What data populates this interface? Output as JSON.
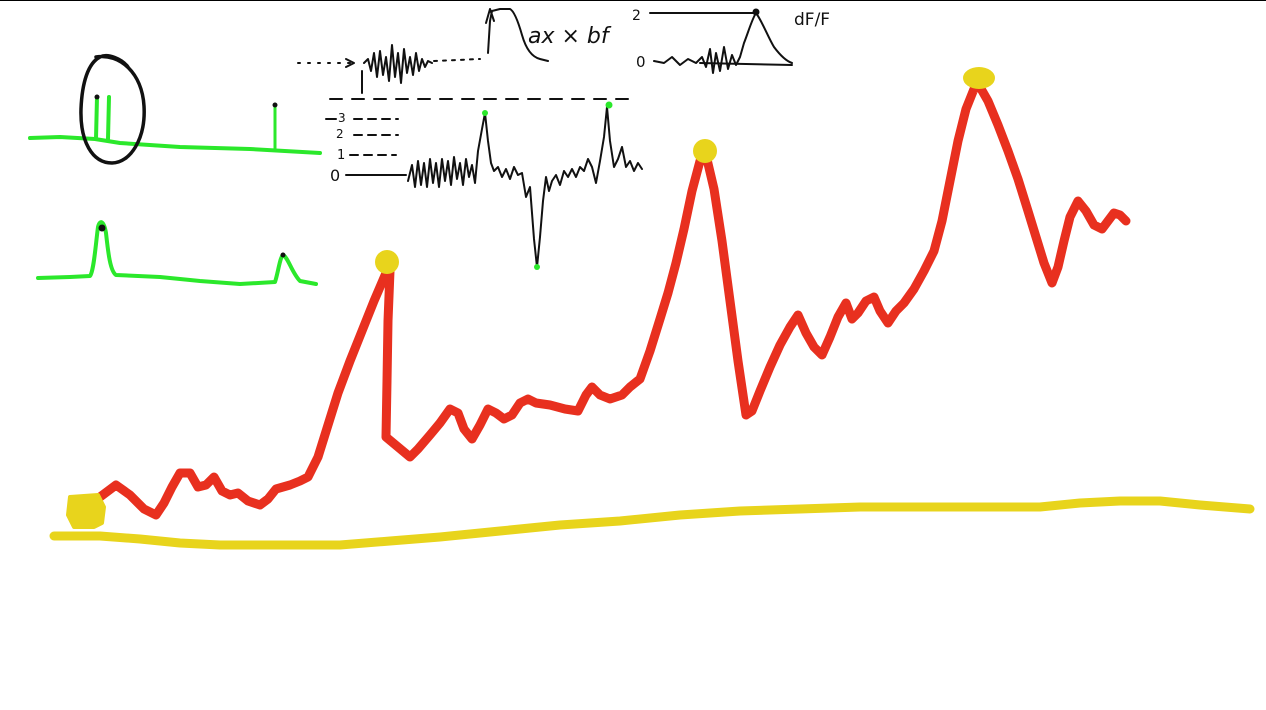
{
  "annotations": {
    "formula": "ax × bf",
    "ratio_label": "dF/F",
    "scale_top": "2",
    "scale_bottom": "0",
    "level_3": "3",
    "level_2": "2",
    "level_1": "1",
    "level_0": "0"
  },
  "colors": {
    "ink": "#111111",
    "green": "#2be82b",
    "red": "#e8301f",
    "yellow": "#e8d41c"
  }
}
